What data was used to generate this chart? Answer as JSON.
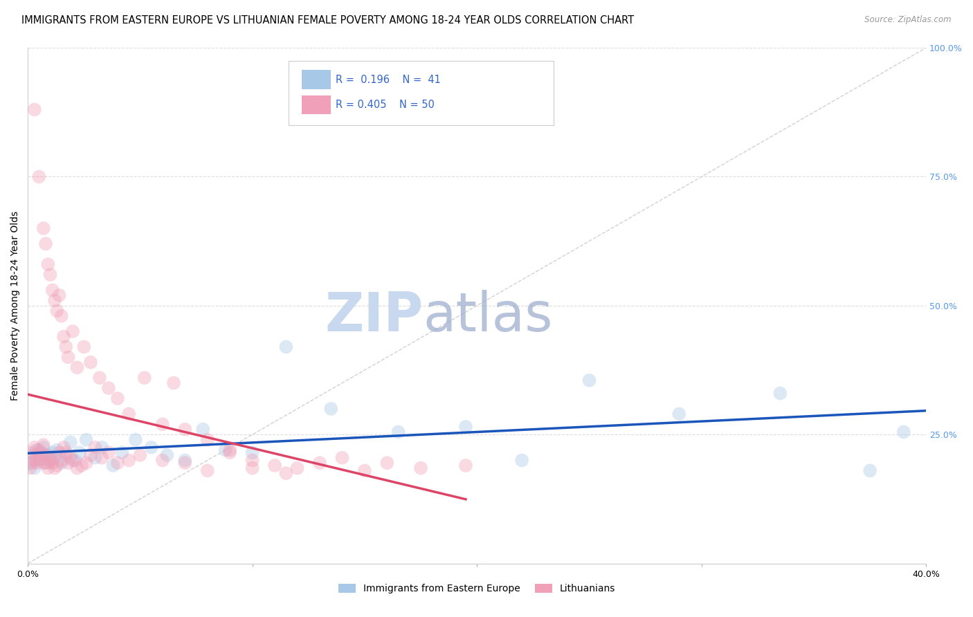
{
  "title": "IMMIGRANTS FROM EASTERN EUROPE VS LITHUANIAN FEMALE POVERTY AMONG 18-24 YEAR OLDS CORRELATION CHART",
  "source": "Source: ZipAtlas.com",
  "ylabel": "Female Poverty Among 18-24 Year Olds",
  "xlim": [
    0.0,
    0.4
  ],
  "ylim": [
    0.0,
    1.0
  ],
  "blue_color": "#a8c8e8",
  "pink_color": "#f0a0b8",
  "blue_line_color": "#1a55bb",
  "pink_line_color": "#dd4466",
  "diag_line_color": "#cccccc",
  "watermark_color": "#c8d8ee",
  "legend_label1": "Immigrants from Eastern Europe",
  "legend_label2": "Lithuanians",
  "title_fontsize": 10.5,
  "axis_label_fontsize": 10,
  "tick_fontsize": 9,
  "scatter_size": 200,
  "scatter_alpha": 0.4,
  "grid_color": "#dddddd",
  "background_color": "#ffffff",
  "blue_scatter_x": [
    0.001,
    0.002,
    0.003,
    0.004,
    0.004,
    0.005,
    0.006,
    0.007,
    0.008,
    0.009,
    0.01,
    0.011,
    0.012,
    0.013,
    0.015,
    0.017,
    0.019,
    0.021,
    0.023,
    0.026,
    0.03,
    0.033,
    0.038,
    0.042,
    0.048,
    0.055,
    0.062,
    0.07,
    0.078,
    0.088,
    0.1,
    0.115,
    0.135,
    0.165,
    0.195,
    0.22,
    0.25,
    0.29,
    0.335,
    0.375,
    0.39
  ],
  "blue_scatter_y": [
    0.195,
    0.21,
    0.185,
    0.22,
    0.2,
    0.215,
    0.205,
    0.225,
    0.195,
    0.21,
    0.2,
    0.215,
    0.205,
    0.22,
    0.195,
    0.21,
    0.235,
    0.2,
    0.215,
    0.24,
    0.205,
    0.225,
    0.19,
    0.215,
    0.24,
    0.225,
    0.21,
    0.2,
    0.26,
    0.22,
    0.215,
    0.42,
    0.3,
    0.255,
    0.265,
    0.2,
    0.355,
    0.29,
    0.33,
    0.18,
    0.255
  ],
  "pink_scatter_x": [
    0.001,
    0.002,
    0.002,
    0.003,
    0.003,
    0.004,
    0.004,
    0.005,
    0.005,
    0.006,
    0.007,
    0.007,
    0.008,
    0.009,
    0.009,
    0.01,
    0.01,
    0.011,
    0.012,
    0.013,
    0.014,
    0.015,
    0.016,
    0.017,
    0.018,
    0.019,
    0.02,
    0.022,
    0.024,
    0.026,
    0.028,
    0.03,
    0.033,
    0.036,
    0.04,
    0.045,
    0.05,
    0.06,
    0.07,
    0.08,
    0.09,
    0.1,
    0.11,
    0.12,
    0.13,
    0.14,
    0.15,
    0.16,
    0.175,
    0.195
  ],
  "pink_scatter_y": [
    0.185,
    0.195,
    0.215,
    0.2,
    0.225,
    0.21,
    0.195,
    0.22,
    0.2,
    0.215,
    0.195,
    0.23,
    0.21,
    0.195,
    0.185,
    0.205,
    0.2,
    0.195,
    0.185,
    0.19,
    0.215,
    0.2,
    0.225,
    0.215,
    0.195,
    0.205,
    0.2,
    0.185,
    0.19,
    0.195,
    0.21,
    0.225,
    0.205,
    0.215,
    0.195,
    0.2,
    0.21,
    0.2,
    0.195,
    0.18,
    0.215,
    0.2,
    0.19,
    0.185,
    0.195,
    0.205,
    0.18,
    0.195,
    0.185,
    0.19
  ],
  "pink_high_x": [
    0.003,
    0.005,
    0.007,
    0.008,
    0.009,
    0.01,
    0.011,
    0.012,
    0.013,
    0.014,
    0.015,
    0.016,
    0.017,
    0.018,
    0.02,
    0.022,
    0.025,
    0.028,
    0.032,
    0.036,
    0.04,
    0.045,
    0.052,
    0.06,
    0.065,
    0.07,
    0.08,
    0.09,
    0.1,
    0.115
  ],
  "pink_high_y": [
    0.88,
    0.75,
    0.65,
    0.62,
    0.58,
    0.56,
    0.53,
    0.51,
    0.49,
    0.52,
    0.48,
    0.44,
    0.42,
    0.4,
    0.45,
    0.38,
    0.42,
    0.39,
    0.36,
    0.34,
    0.32,
    0.29,
    0.36,
    0.27,
    0.35,
    0.26,
    0.24,
    0.22,
    0.185,
    0.175
  ]
}
